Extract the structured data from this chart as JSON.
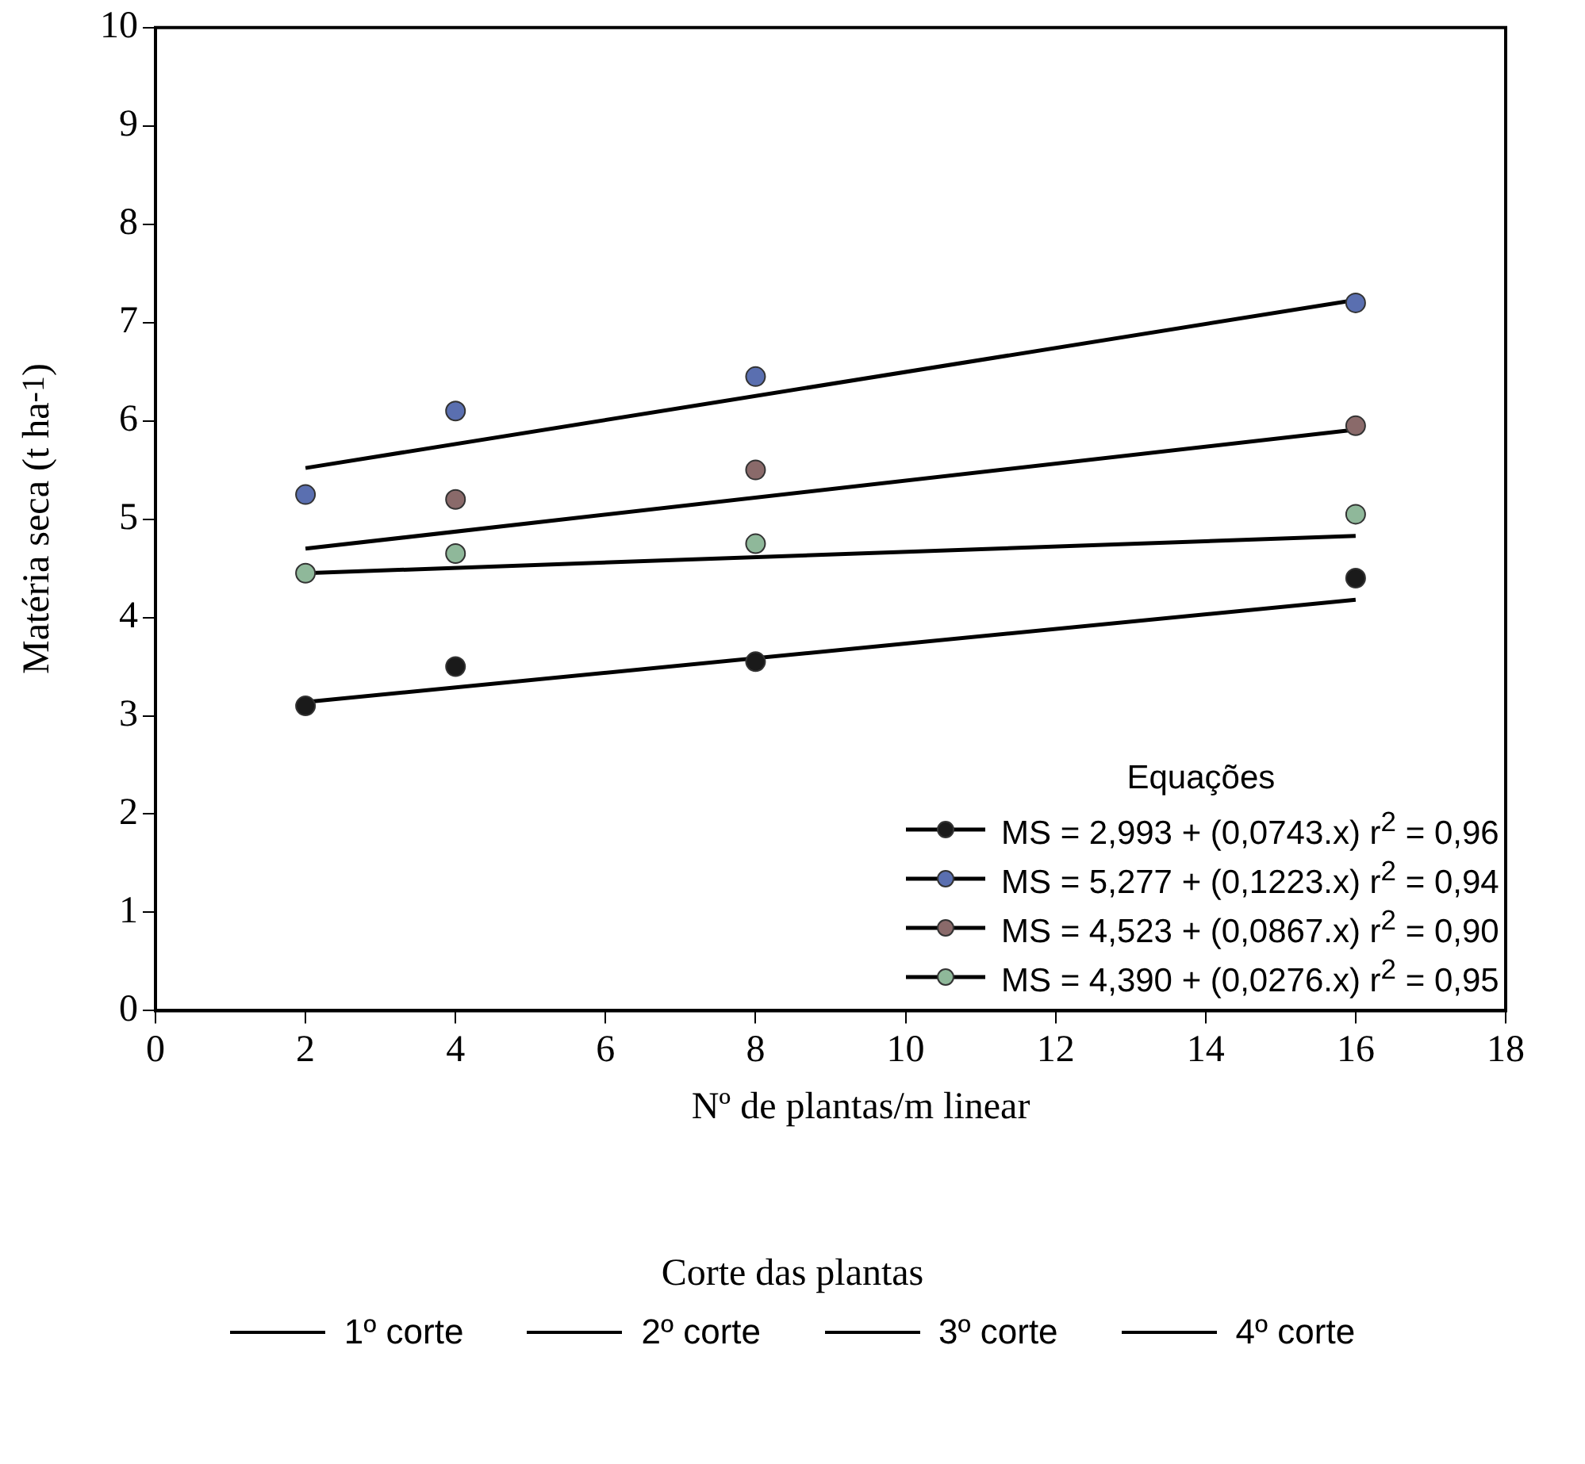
{
  "chart_data": {
    "type": "scatter",
    "xlabel": "Nº de plantas/m linear",
    "ylabel": "Matéria seca (t ha$^{-1}$)",
    "legend_title": "Corte das plantas",
    "annotations": [
      "Equações"
    ],
    "xlim": [
      0,
      18
    ],
    "xticks": [
      0,
      2,
      4,
      6,
      8,
      10,
      12,
      14,
      16,
      18
    ],
    "ylim": [
      0,
      10
    ],
    "yticks": [
      0,
      1,
      2,
      3,
      4,
      5,
      6,
      7,
      8,
      9,
      10
    ],
    "grid": false,
    "legend": "bottom",
    "line_style": "solid",
    "series": [
      {
        "marker": "circle",
        "name": "MS = 2,993 + (0,0743.x) r$^{2}$ = 0,96",
        "color": "#1a1a1a",
        "x": [
          2,
          4,
          8,
          16
        ],
        "values": [
          3.1,
          3.5,
          3.55,
          4.4
        ]
      },
      {
        "marker": "circle",
        "name": "MS = 5,277 + (0,1223.x) r$^{2}$ = 0,94",
        "color": "#5a6fb0",
        "x": [
          2,
          4,
          8,
          16
        ],
        "values": [
          5.25,
          6.1,
          6.45,
          7.2
        ]
      },
      {
        "marker": "circle",
        "name": "MS = 4,523 + (0,0867.x) r$^{2}$ = 0,90",
        "color": "#8a6a6a",
        "x": [
          4,
          8,
          16
        ],
        "values": [
          5.2,
          5.5,
          5.95
        ]
      },
      {
        "marker": "circle",
        "name": "MS = 4,390 + (0,0276.x) r$^{2}$ = 0,95",
        "color": "#8fb89a",
        "x": [
          2,
          4,
          8,
          16
        ],
        "values": [
          4.45,
          4.65,
          4.75,
          5.05
        ]
      },
      {
        "type": "line",
        "marker": "none",
        "name": "1º corte",
        "color": "#000000",
        "x": [
          2,
          16
        ],
        "values": [
          3.14,
          4.18
        ]
      },
      {
        "type": "line",
        "marker": "none",
        "name": "2º corte",
        "color": "#000000",
        "x": [
          2,
          16
        ],
        "values": [
          5.52,
          7.23
        ]
      },
      {
        "type": "line",
        "marker": "none",
        "name": "3º corte",
        "color": "#000000",
        "x": [
          2,
          16
        ],
        "values": [
          4.7,
          5.91
        ]
      },
      {
        "type": "line",
        "marker": "none",
        "name": "4º corte",
        "color": "#000000",
        "x": [
          2,
          16
        ],
        "values": [
          4.45,
          4.83
        ]
      }
    ]
  }
}
